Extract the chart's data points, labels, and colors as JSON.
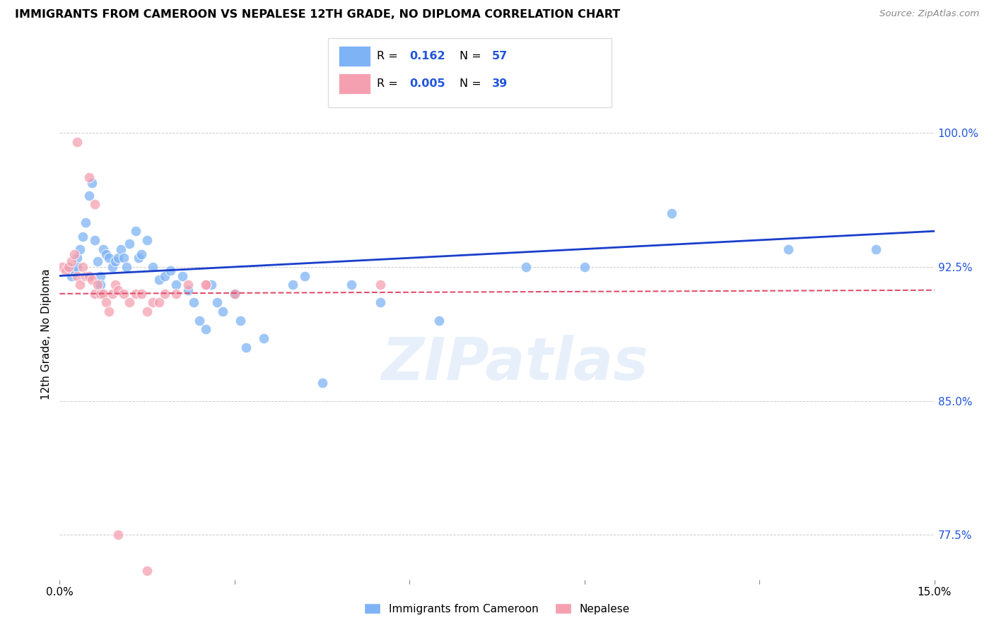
{
  "title": "IMMIGRANTS FROM CAMEROON VS NEPALESE 12TH GRADE, NO DIPLOMA CORRELATION CHART",
  "source": "Source: ZipAtlas.com",
  "ylabel": "12th Grade, No Diploma",
  "xlim": [
    0.0,
    15.0
  ],
  "ylim": [
    75.0,
    102.5
  ],
  "yticks": [
    77.5,
    85.0,
    92.5,
    100.0
  ],
  "ytick_labels": [
    "77.5%",
    "85.0%",
    "92.5%",
    "100.0%"
  ],
  "blue_color": "#7EB3F5",
  "pink_color": "#F5A0B0",
  "line_blue": "#1A3ECC",
  "line_pink": "#E05070",
  "watermark_text": "ZIPatlas",
  "blue_scatter_x": [
    0.15,
    0.2,
    0.25,
    0.3,
    0.35,
    0.4,
    0.45,
    0.5,
    0.55,
    0.6,
    0.65,
    0.7,
    0.75,
    0.8,
    0.85,
    0.9,
    0.95,
    1.0,
    1.05,
    1.1,
    1.15,
    1.2,
    1.3,
    1.35,
    1.4,
    1.5,
    1.6,
    1.7,
    1.8,
    1.9,
    2.0,
    2.1,
    2.2,
    2.3,
    2.4,
    2.5,
    2.6,
    2.7,
    2.8,
    3.0,
    3.1,
    3.2,
    3.5,
    4.0,
    4.2,
    4.5,
    5.0,
    5.5,
    6.5,
    8.0,
    9.0,
    10.5,
    12.5,
    14.0,
    0.3,
    0.5,
    0.7
  ],
  "blue_scatter_y": [
    92.5,
    92.0,
    92.2,
    93.0,
    93.5,
    94.2,
    95.0,
    96.5,
    97.2,
    94.0,
    92.8,
    92.0,
    93.5,
    93.2,
    93.0,
    92.5,
    92.8,
    93.0,
    93.5,
    93.0,
    92.5,
    93.8,
    94.5,
    93.0,
    93.2,
    94.0,
    92.5,
    91.8,
    92.0,
    92.3,
    91.5,
    92.0,
    91.2,
    90.5,
    89.5,
    89.0,
    91.5,
    90.5,
    90.0,
    91.0,
    89.5,
    88.0,
    88.5,
    91.5,
    92.0,
    86.0,
    91.5,
    90.5,
    89.5,
    92.5,
    92.5,
    95.5,
    93.5,
    93.5,
    92.5,
    92.0,
    91.5
  ],
  "pink_scatter_x": [
    0.05,
    0.1,
    0.15,
    0.2,
    0.25,
    0.3,
    0.35,
    0.4,
    0.45,
    0.5,
    0.55,
    0.6,
    0.65,
    0.7,
    0.75,
    0.8,
    0.85,
    0.9,
    0.95,
    1.0,
    1.1,
    1.2,
    1.3,
    1.4,
    1.5,
    1.6,
    1.7,
    1.8,
    2.0,
    2.2,
    2.5,
    3.0,
    5.5,
    0.3,
    0.5,
    0.6,
    1.0,
    1.5,
    2.5
  ],
  "pink_scatter_y": [
    92.5,
    92.3,
    92.5,
    92.8,
    93.2,
    92.0,
    91.5,
    92.5,
    92.0,
    92.0,
    91.8,
    91.0,
    91.5,
    91.0,
    91.0,
    90.5,
    90.0,
    91.0,
    91.5,
    91.2,
    91.0,
    90.5,
    91.0,
    91.0,
    90.0,
    90.5,
    90.5,
    91.0,
    91.0,
    91.5,
    91.5,
    91.0,
    91.5,
    99.5,
    97.5,
    96.0,
    77.5,
    75.5,
    91.5
  ],
  "blue_line_x": [
    0.0,
    15.0
  ],
  "blue_line_y": [
    92.0,
    94.5
  ],
  "pink_line_x": [
    0.0,
    15.0
  ],
  "pink_line_y": [
    91.0,
    91.2
  ]
}
